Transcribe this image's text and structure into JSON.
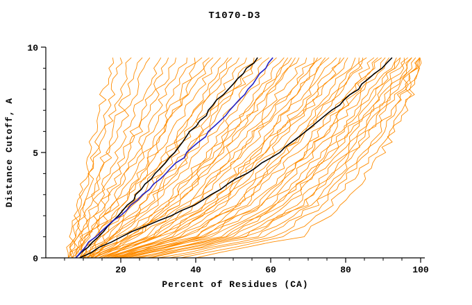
{
  "window": {
    "background": "#ffffff"
  },
  "chart_data": {
    "type": "line",
    "title": "T1070-D3",
    "xlabel": "Percent of Residues (CA)",
    "ylabel": "Distance Cutoff, A",
    "xlim": [
      0,
      102
    ],
    "ylim": [
      0,
      10
    ],
    "grid": false,
    "legend": "none",
    "x_major_ticks": [
      20,
      40,
      60,
      80,
      100
    ],
    "x_minor_step": 5,
    "y_major_ticks": [
      0,
      5,
      10
    ],
    "y_minor_step": 1,
    "colors": {
      "models": "#ff8c00",
      "highlight_black": "#000000",
      "highlight_blue": "#2121c8",
      "axis": "#000000",
      "background": "#ffffff"
    },
    "y_levels": [
      0,
      1,
      2.5,
      5,
      7.5,
      9.6
    ],
    "highlight_series": [
      {
        "name": "reference-model-black-1",
        "color": "#000000",
        "x": [
          8,
          14,
          22,
          34,
          46,
          57
        ]
      },
      {
        "name": "reference-model-black-2",
        "color": "#000000",
        "x": [
          9,
          20,
          40,
          62,
          80,
          93
        ]
      },
      {
        "name": "reference-model-blue",
        "color": "#2121c8",
        "x": [
          8,
          13,
          23,
          38,
          52,
          61
        ]
      }
    ],
    "model_curves": [
      [
        6,
        7,
        9,
        12,
        15,
        18
      ],
      [
        6,
        7,
        9,
        13,
        17,
        20
      ],
      [
        7,
        8,
        10,
        14,
        19,
        23
      ],
      [
        6,
        8,
        11,
        16,
        21,
        26
      ],
      [
        7,
        9,
        12,
        17,
        23,
        28
      ],
      [
        8,
        10,
        13,
        19,
        25,
        31
      ],
      [
        7,
        9,
        14,
        21,
        27,
        33
      ],
      [
        8,
        11,
        15,
        22,
        29,
        35
      ],
      [
        9,
        12,
        16,
        24,
        31,
        38
      ],
      [
        8,
        11,
        17,
        25,
        33,
        40
      ],
      [
        9,
        13,
        18,
        27,
        35,
        42
      ],
      [
        10,
        14,
        20,
        28,
        37,
        45
      ],
      [
        9,
        13,
        21,
        30,
        39,
        47
      ],
      [
        10,
        15,
        22,
        32,
        41,
        49
      ],
      [
        11,
        16,
        24,
        34,
        43,
        52
      ],
      [
        10,
        16,
        25,
        35,
        45,
        54
      ],
      [
        11,
        17,
        26,
        37,
        47,
        56
      ],
      [
        12,
        18,
        28,
        39,
        49,
        58
      ],
      [
        11,
        19,
        29,
        41,
        51,
        60
      ],
      [
        12,
        20,
        31,
        43,
        53,
        62
      ],
      [
        13,
        21,
        32,
        44,
        55,
        64
      ],
      [
        12,
        22,
        34,
        46,
        57,
        66
      ],
      [
        13,
        23,
        35,
        48,
        59,
        68
      ],
      [
        14,
        25,
        37,
        50,
        61,
        70
      ],
      [
        13,
        26,
        38,
        51,
        63,
        72
      ],
      [
        14,
        27,
        40,
        53,
        65,
        74
      ],
      [
        15,
        29,
        42,
        55,
        67,
        76
      ],
      [
        14,
        30,
        43,
        57,
        69,
        78
      ],
      [
        15,
        31,
        45,
        58,
        71,
        80
      ],
      [
        16,
        33,
        47,
        60,
        72,
        81
      ],
      [
        15,
        34,
        48,
        62,
        74,
        83
      ],
      [
        16,
        36,
        50,
        64,
        76,
        85
      ],
      [
        17,
        37,
        52,
        65,
        77,
        86
      ],
      [
        18,
        39,
        53,
        67,
        79,
        88
      ],
      [
        17,
        40,
        55,
        69,
        80,
        89
      ],
      [
        18,
        42,
        57,
        70,
        82,
        91
      ],
      [
        19,
        43,
        58,
        72,
        83,
        92
      ],
      [
        20,
        45,
        60,
        74,
        85,
        94
      ],
      [
        19,
        46,
        62,
        75,
        86,
        95
      ],
      [
        21,
        48,
        63,
        77,
        88,
        96
      ],
      [
        22,
        50,
        65,
        78,
        89,
        97
      ],
      [
        23,
        52,
        67,
        80,
        90,
        98
      ],
      [
        25,
        54,
        69,
        82,
        92,
        99
      ],
      [
        27,
        56,
        71,
        83,
        93,
        100
      ],
      [
        30,
        58,
        72,
        85,
        94,
        100
      ],
      [
        33,
        61,
        74,
        86,
        95,
        100
      ],
      [
        36,
        64,
        76,
        88,
        96,
        100
      ],
      [
        40,
        68,
        79,
        90,
        97,
        100
      ],
      [
        7,
        10,
        19,
        29,
        36,
        44
      ],
      [
        9,
        14,
        23,
        33,
        42,
        50
      ],
      [
        11,
        18,
        27,
        38,
        48,
        57
      ],
      [
        13,
        24,
        33,
        45,
        56,
        65
      ],
      [
        15,
        28,
        39,
        52,
        63,
        73
      ],
      [
        16,
        32,
        46,
        58,
        70,
        79
      ],
      [
        18,
        37,
        51,
        64,
        75,
        84
      ],
      [
        20,
        42,
        56,
        70,
        81,
        90
      ],
      [
        24,
        47,
        61,
        76,
        87,
        95
      ],
      [
        28,
        53,
        68,
        81,
        91,
        98
      ],
      [
        12,
        30,
        44,
        56,
        66,
        75
      ],
      [
        10,
        22,
        35,
        47,
        58,
        67
      ]
    ]
  }
}
